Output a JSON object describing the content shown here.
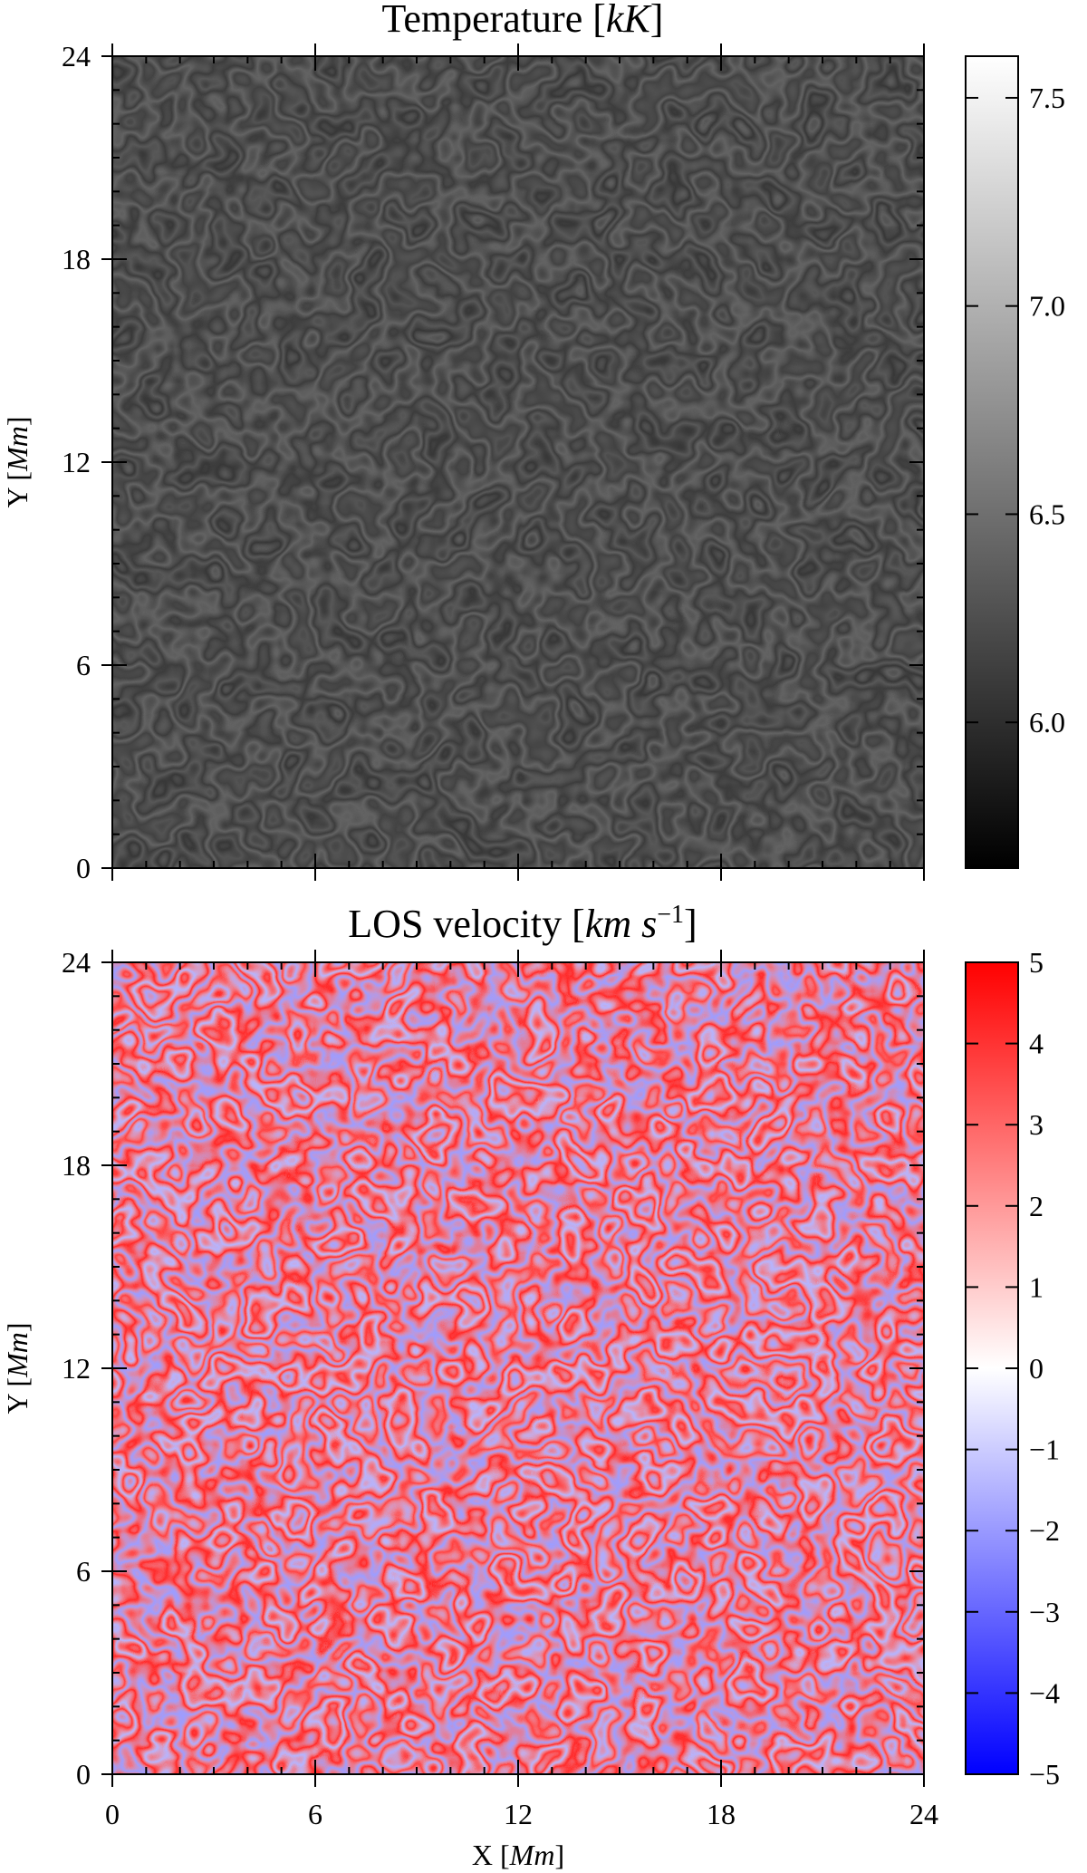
{
  "chart_data": [
    {
      "type": "heatmap",
      "title_main": "Temperature ",
      "title_unit": "kK",
      "xlabel": "",
      "ylabel_main": "Y ",
      "ylabel_unit": "Mm",
      "xlim": [
        0,
        24
      ],
      "ylim": [
        0,
        24
      ],
      "x_ticks": [
        "0",
        "6",
        "12",
        "18",
        "24"
      ],
      "y_ticks": [
        "0",
        "6",
        "12",
        "18",
        "24"
      ],
      "x_tick_values": [
        0,
        6,
        12,
        18,
        24
      ],
      "y_tick_values": [
        0,
        6,
        12,
        18,
        24
      ],
      "x_tick_labels_shown": false,
      "colorbar": {
        "range": [
          5.65,
          7.6
        ],
        "ticks": [
          "6.0",
          "6.5",
          "7.0",
          "7.5"
        ],
        "tick_values": [
          6.0,
          6.5,
          7.0,
          7.5
        ],
        "colormap": "gray",
        "colors": [
          "#000000",
          "#ffffff"
        ]
      },
      "grid": false,
      "description_hidden": "solar granulation temperature map: bright granules with dark intergranular lanes"
    },
    {
      "type": "heatmap",
      "title_main": "LOS velocity ",
      "title_unit": "km s",
      "title_sup": "−1",
      "xlabel_main": "X ",
      "xlabel_unit": "Mm",
      "ylabel_main": "Y ",
      "ylabel_unit": "Mm",
      "xlim": [
        0,
        24
      ],
      "ylim": [
        0,
        24
      ],
      "x_ticks": [
        "0",
        "6",
        "12",
        "18",
        "24"
      ],
      "y_ticks": [
        "0",
        "6",
        "12",
        "18",
        "24"
      ],
      "x_tick_values": [
        0,
        6,
        12,
        18,
        24
      ],
      "y_tick_values": [
        0,
        6,
        12,
        18,
        24
      ],
      "x_tick_labels_shown": true,
      "colorbar": {
        "range": [
          -5,
          5
        ],
        "ticks": [
          "5",
          "4",
          "3",
          "2",
          "1",
          "0",
          "−1",
          "−2",
          "−3",
          "−4",
          "−5"
        ],
        "tick_values": [
          5,
          4,
          3,
          2,
          1,
          0,
          -1,
          -2,
          -3,
          -4,
          -5
        ],
        "colormap": "bwr",
        "colors": [
          "#0000ff",
          "#ffffff",
          "#ff0000"
        ]
      },
      "grid": false
    }
  ]
}
